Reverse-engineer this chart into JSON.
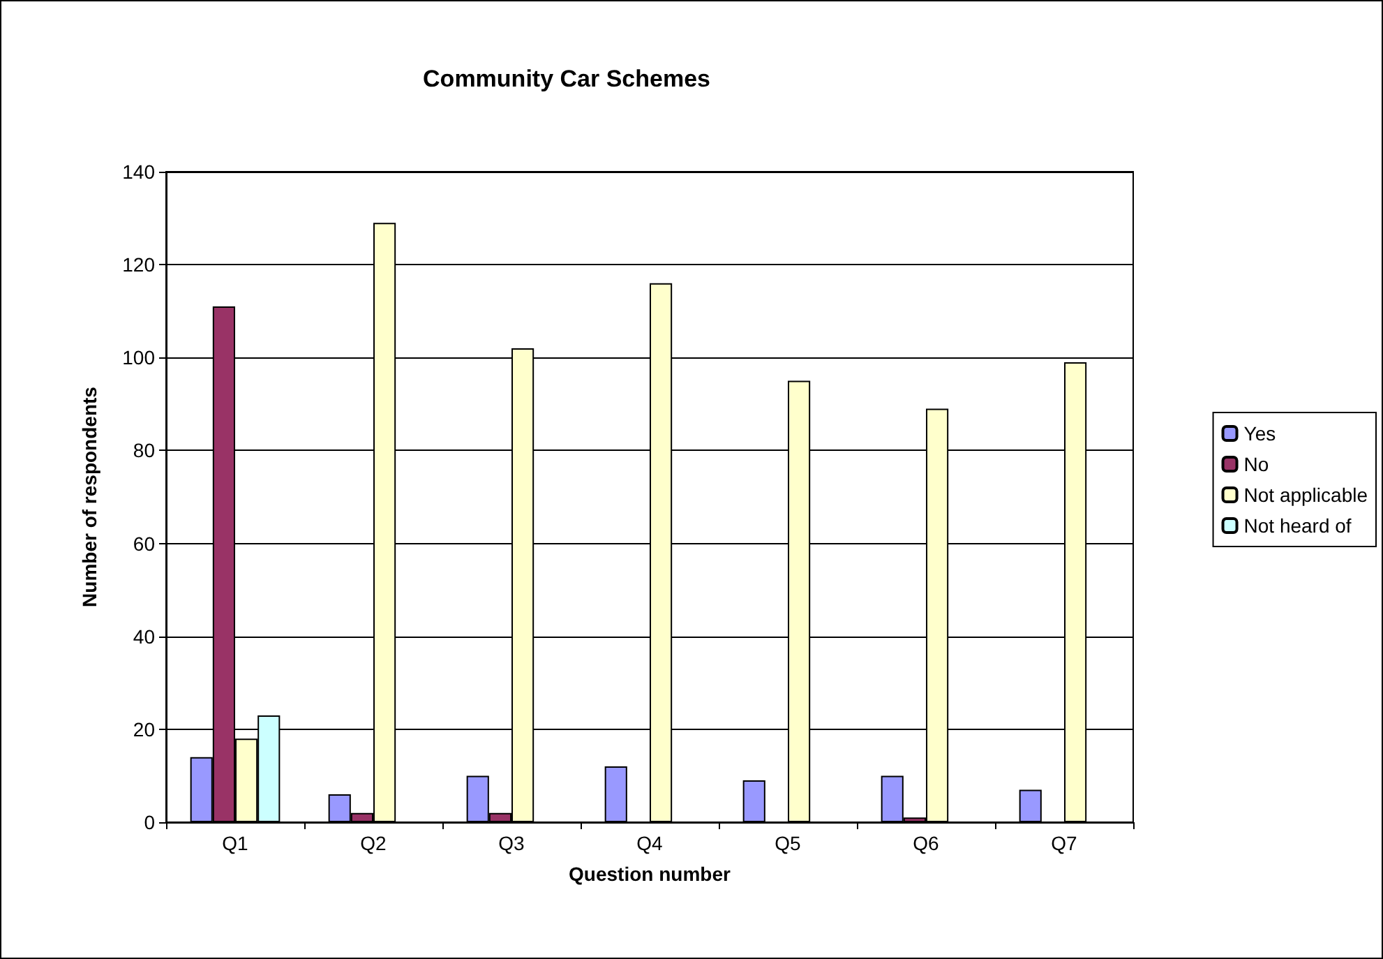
{
  "chart_data": {
    "type": "bar",
    "title": "Community Car Schemes",
    "xlabel": "Question number",
    "ylabel": "Number of respondents",
    "categories": [
      "Q1",
      "Q2",
      "Q3",
      "Q4",
      "Q5",
      "Q6",
      "Q7"
    ],
    "series": [
      {
        "name": "Yes",
        "color": "#9999ff",
        "values": [
          14,
          6,
          10,
          12,
          9,
          10,
          7
        ]
      },
      {
        "name": "No",
        "color": "#993366",
        "values": [
          111,
          2,
          2,
          null,
          null,
          1,
          null
        ]
      },
      {
        "name": "Not applicable",
        "color": "#ffffcc",
        "values": [
          18,
          129,
          102,
          116,
          95,
          89,
          99
        ]
      },
      {
        "name": "Not heard of",
        "color": "#ccffff",
        "values": [
          23,
          null,
          null,
          null,
          null,
          null,
          null
        ]
      }
    ],
    "ylim": [
      0,
      140
    ],
    "yticks": [
      0,
      20,
      40,
      60,
      80,
      100,
      120,
      140
    ],
    "grid": "y",
    "legend": "right"
  }
}
